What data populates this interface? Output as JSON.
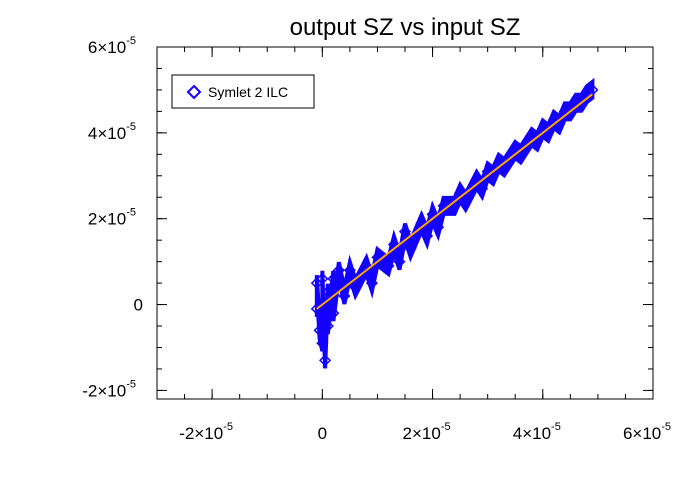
{
  "chart_data": {
    "type": "scatter",
    "title": "output SZ vs input SZ",
    "xlabel": "",
    "ylabel": "",
    "xlim": [
      -3e-05,
      6e-05
    ],
    "ylim": [
      -2.2e-05,
      6e-05
    ],
    "x_ticks": [
      {
        "value": -2e-05,
        "mantissa": "-2×10",
        "exp": "-5"
      },
      {
        "value": 0,
        "mantissa": "0",
        "exp": ""
      },
      {
        "value": 2e-05,
        "mantissa": "2×10",
        "exp": "-5"
      },
      {
        "value": 4e-05,
        "mantissa": "4×10",
        "exp": "-5"
      },
      {
        "value": 6e-05,
        "mantissa": "6×10",
        "exp": "-5"
      }
    ],
    "y_ticks": [
      {
        "value": -2e-05,
        "mantissa": "-2×10",
        "exp": "-5"
      },
      {
        "value": 0,
        "mantissa": "0",
        "exp": ""
      },
      {
        "value": 2e-05,
        "mantissa": "2×10",
        "exp": "-5"
      },
      {
        "value": 4e-05,
        "mantissa": "4×10",
        "exp": "-5"
      },
      {
        "value": 6e-05,
        "mantissa": "6×10",
        "exp": "-5"
      }
    ],
    "legend": {
      "placement": "top-left",
      "entries": [
        {
          "label": "Symlet 2 ILC",
          "marker": "diamond",
          "color": "#1400ff"
        }
      ]
    },
    "series": [
      {
        "name": "Symlet 2 ILC",
        "marker": "diamond",
        "color": "#1400ff",
        "points": [
          [
            -1e-06,
            -1e-06
          ],
          [
            -1e-06,
            5e-06
          ],
          [
            -5e-07,
            -6e-06
          ],
          [
            0.0,
            -9e-06
          ],
          [
            5e-07,
            -1.3e-05
          ],
          [
            0.0,
            6e-06
          ],
          [
            1e-06,
            3e-06
          ],
          [
            1e-06,
            -5e-06
          ],
          [
            2e-06,
            6e-06
          ],
          [
            3e-06,
            8e-06
          ],
          [
            2e-06,
            -2e-06
          ],
          [
            4e-06,
            2e-06
          ],
          [
            5e-06,
            8e-06
          ],
          [
            6e-06,
            4e-06
          ],
          [
            8e-06,
            9e-06
          ],
          [
            9e-06,
            5e-06
          ],
          [
            1e-05,
            1.1e-05
          ],
          [
            1.2e-05,
            9e-06
          ],
          [
            1.3e-05,
            1.4e-05
          ],
          [
            1.4e-05,
            1e-05
          ],
          [
            1.5e-05,
            1.7e-05
          ],
          [
            1.6e-05,
            1.3e-05
          ],
          [
            1.8e-05,
            1.9e-05
          ],
          [
            1.9e-05,
            1.6e-05
          ],
          [
            2e-05,
            2.1e-05
          ],
          [
            2.1e-05,
            1.8e-05
          ],
          [
            2.2e-05,
            2.3e-05
          ],
          [
            2.4e-05,
            2.3e-05
          ],
          [
            2.5e-05,
            2.6e-05
          ],
          [
            2.6e-05,
            2.4e-05
          ],
          [
            2.8e-05,
            2.9e-05
          ],
          [
            2.9e-05,
            2.7e-05
          ],
          [
            3e-05,
            3.1e-05
          ],
          [
            3.1e-05,
            3e-05
          ],
          [
            3.2e-05,
            3.3e-05
          ],
          [
            3.3e-05,
            3.2e-05
          ],
          [
            3.5e-05,
            3.6e-05
          ],
          [
            3.6e-05,
            3.5e-05
          ],
          [
            3.8e-05,
            3.9e-05
          ],
          [
            3.9e-05,
            3.8e-05
          ],
          [
            4e-05,
            4.1e-05
          ],
          [
            4.1e-05,
            4e-05
          ],
          [
            4.2e-05,
            4.3e-05
          ],
          [
            4.3e-05,
            4.2e-05
          ],
          [
            4.4e-05,
            4.5e-05
          ],
          [
            4.5e-05,
            4.5e-05
          ],
          [
            4.6e-05,
            4.7e-05
          ],
          [
            4.7e-05,
            4.7e-05
          ],
          [
            4.8e-05,
            4.9e-05
          ],
          [
            4.9e-05,
            5e-05
          ]
        ]
      }
    ],
    "fit_line": {
      "color": "#ffa500",
      "from": [
        -1e-06,
        -1e-06
      ],
      "to": [
        4.9e-05,
        4.9e-05
      ]
    },
    "grid": false
  }
}
